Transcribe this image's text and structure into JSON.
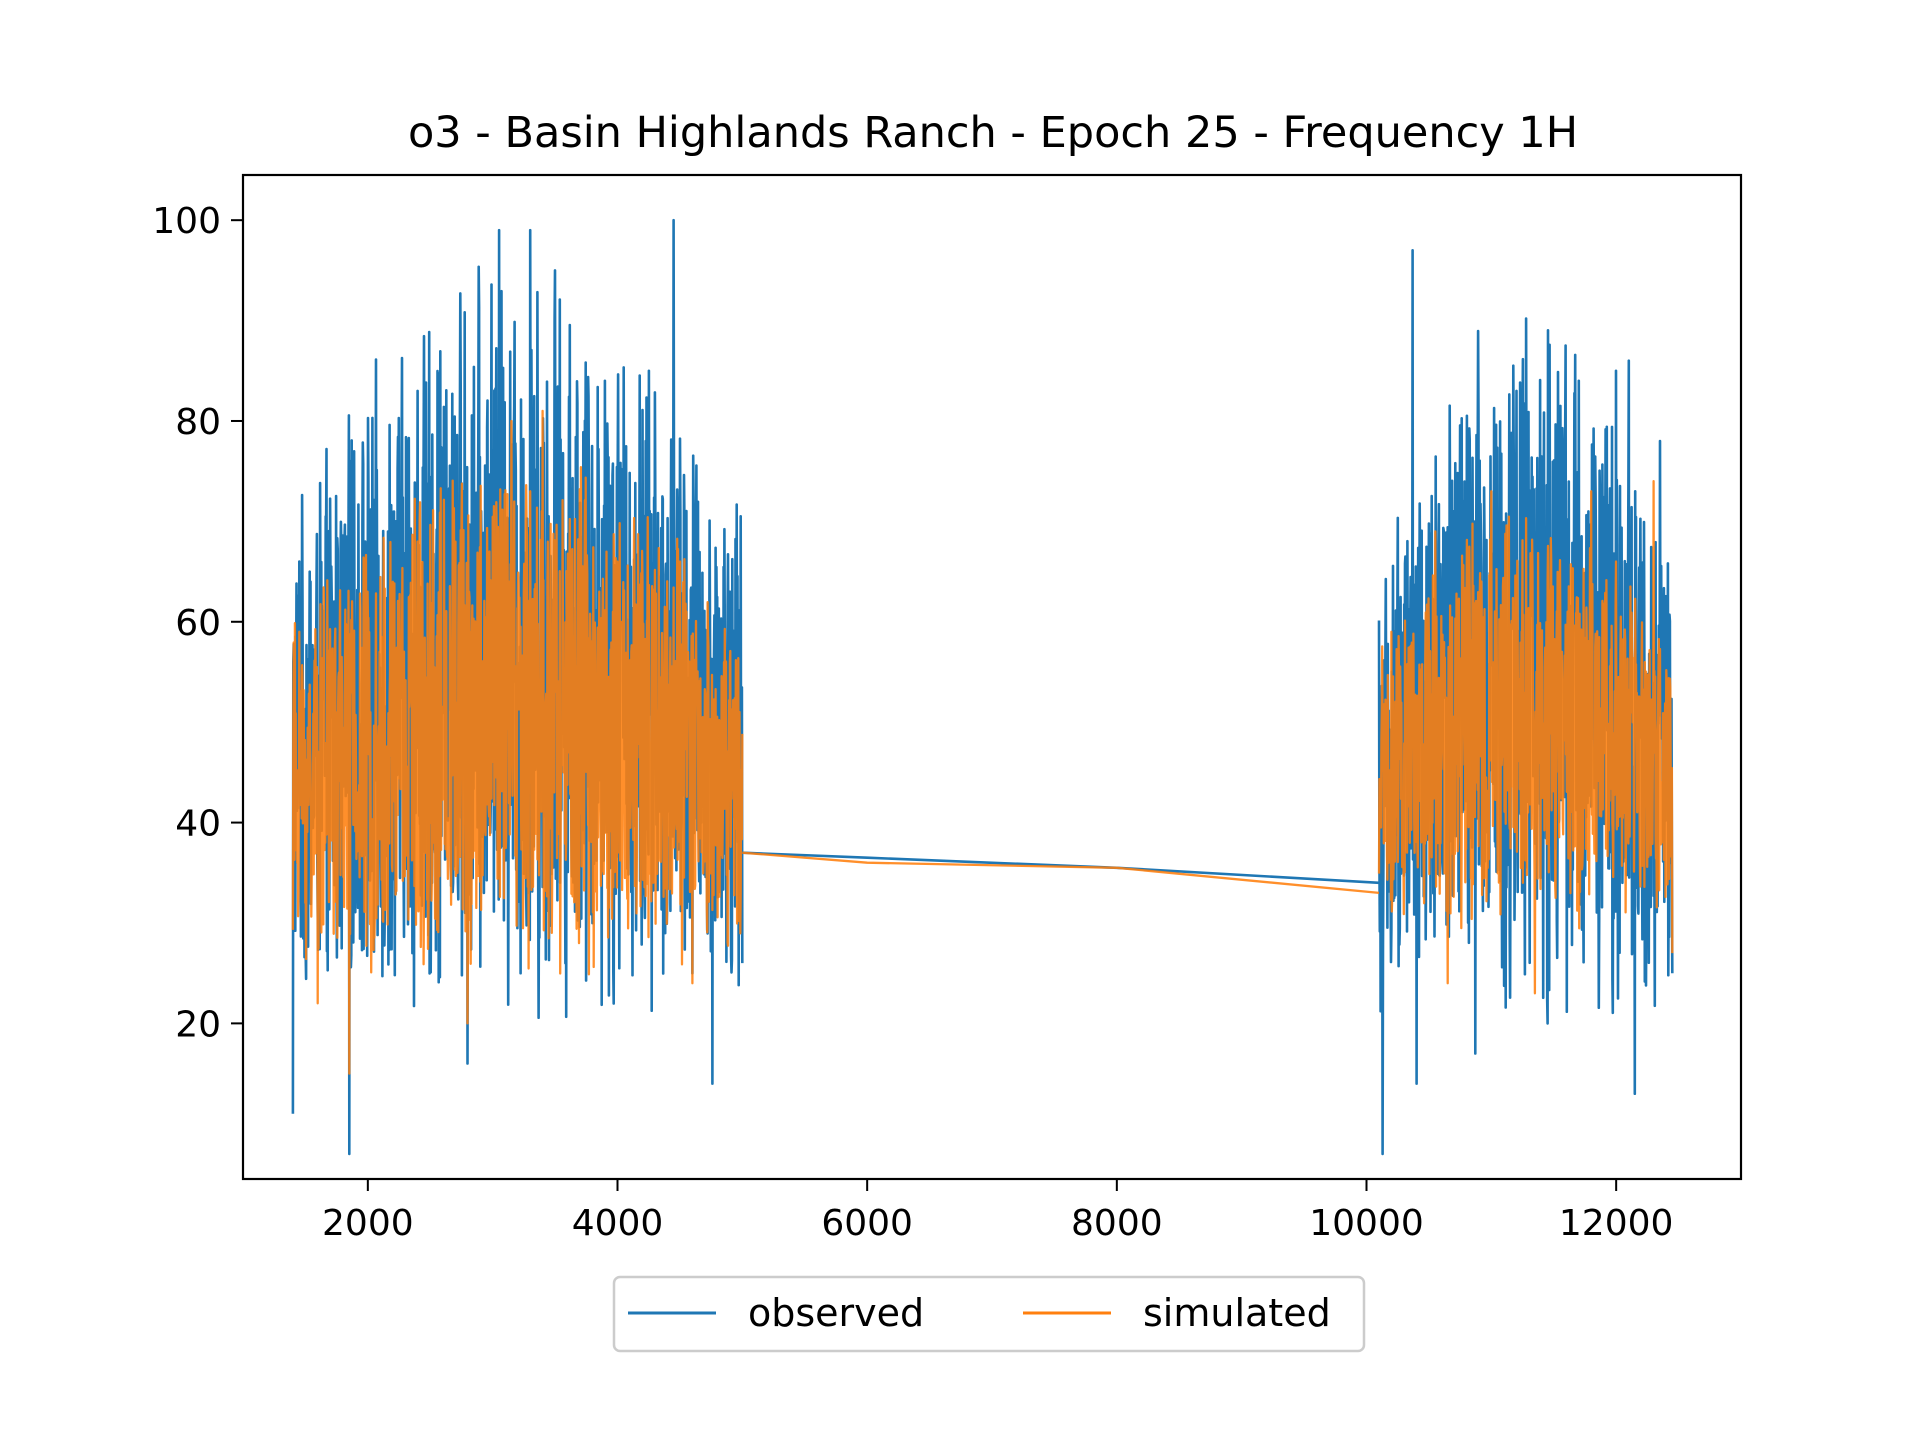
{
  "chart_data": {
    "type": "line",
    "title": "o3 - Basin Highlands Ranch - Epoch 25 - Frequency 1H",
    "xlabel": "",
    "ylabel": "",
    "xlim": [
      1000,
      13000
    ],
    "ylim": [
      4.5,
      104.5
    ],
    "x_ticks": [
      "2000",
      "4000",
      "6000",
      "8000",
      "10000",
      "12000"
    ],
    "x_tick_values": [
      2000,
      4000,
      6000,
      8000,
      10000,
      12000
    ],
    "y_ticks": [
      "20",
      "40",
      "60",
      "80",
      "100"
    ],
    "y_tick_values": [
      20,
      40,
      60,
      80,
      100
    ],
    "grid": false,
    "legend_position": "below-center",
    "series": [
      {
        "name": "observed",
        "color": "#1f77b4",
        "segments": [
          {
            "x_start": 1400,
            "x_end": 5000,
            "ymin": 7,
            "ymax": 100,
            "peaks": [
              [
                1400,
                11
              ],
              [
                1450,
                66
              ],
              [
                1850,
                7
              ],
              [
                1860,
                76
              ],
              [
                2400,
                83
              ],
              [
                2800,
                16
              ],
              [
                3050,
                99
              ],
              [
                3300,
                99
              ],
              [
                3500,
                95
              ],
              [
                3900,
                84
              ],
              [
                4250,
                85
              ],
              [
                4450,
                100
              ],
              [
                4600,
                25
              ],
              [
                4760,
                14
              ],
              [
                4900,
                63
              ],
              [
                5000,
                26
              ]
            ]
          },
          {
            "x_start": 5000,
            "x_end": 10100,
            "line": [
              [
                5000,
                37
              ],
              [
                6000,
                36.5
              ],
              [
                8000,
                35.5
              ],
              [
                10100,
                34
              ]
            ]
          },
          {
            "x_start": 10100,
            "x_end": 12450,
            "ymin": 7,
            "ymax": 97,
            "peaks": [
              [
                10130,
                7
              ],
              [
                10150,
                57
              ],
              [
                10370,
                97
              ],
              [
                10400,
                14
              ],
              [
                10700,
                71
              ],
              [
                10870,
                17
              ],
              [
                11200,
                83
              ],
              [
                11450,
                20
              ],
              [
                11700,
                84
              ],
              [
                12000,
                85
              ],
              [
                12100,
                86
              ],
              [
                12150,
                13
              ],
              [
                12350,
                78
              ],
              [
                12450,
                25
              ]
            ]
          }
        ]
      },
      {
        "name": "simulated",
        "color": "#ff7f0e",
        "segments": [
          {
            "x_start": 1400,
            "x_end": 5000,
            "ymin": 15,
            "ymax": 81,
            "peaks": [
              [
                1450,
                59
              ],
              [
                1600,
                22
              ],
              [
                1850,
                15
              ],
              [
                2000,
                63
              ],
              [
                2400,
                68
              ],
              [
                2800,
                20
              ],
              [
                3150,
                80
              ],
              [
                3400,
                81
              ],
              [
                4000,
                66
              ],
              [
                4500,
                66
              ],
              [
                4600,
                24
              ],
              [
                4900,
                56
              ]
            ]
          },
          {
            "x_start": 5000,
            "x_end": 10100,
            "line": [
              [
                5000,
                37
              ],
              [
                6000,
                36
              ],
              [
                8000,
                35.5
              ],
              [
                10100,
                33
              ]
            ]
          },
          {
            "x_start": 10100,
            "x_end": 12450,
            "ymin": 22,
            "ymax": 74,
            "peaks": [
              [
                10200,
                59
              ],
              [
                10550,
                69
              ],
              [
                10650,
                24
              ],
              [
                11000,
                73
              ],
              [
                11350,
                23
              ],
              [
                11800,
                73
              ],
              [
                12000,
                66
              ],
              [
                12300,
                74
              ],
              [
                12450,
                27
              ]
            ]
          }
        ]
      }
    ]
  }
}
